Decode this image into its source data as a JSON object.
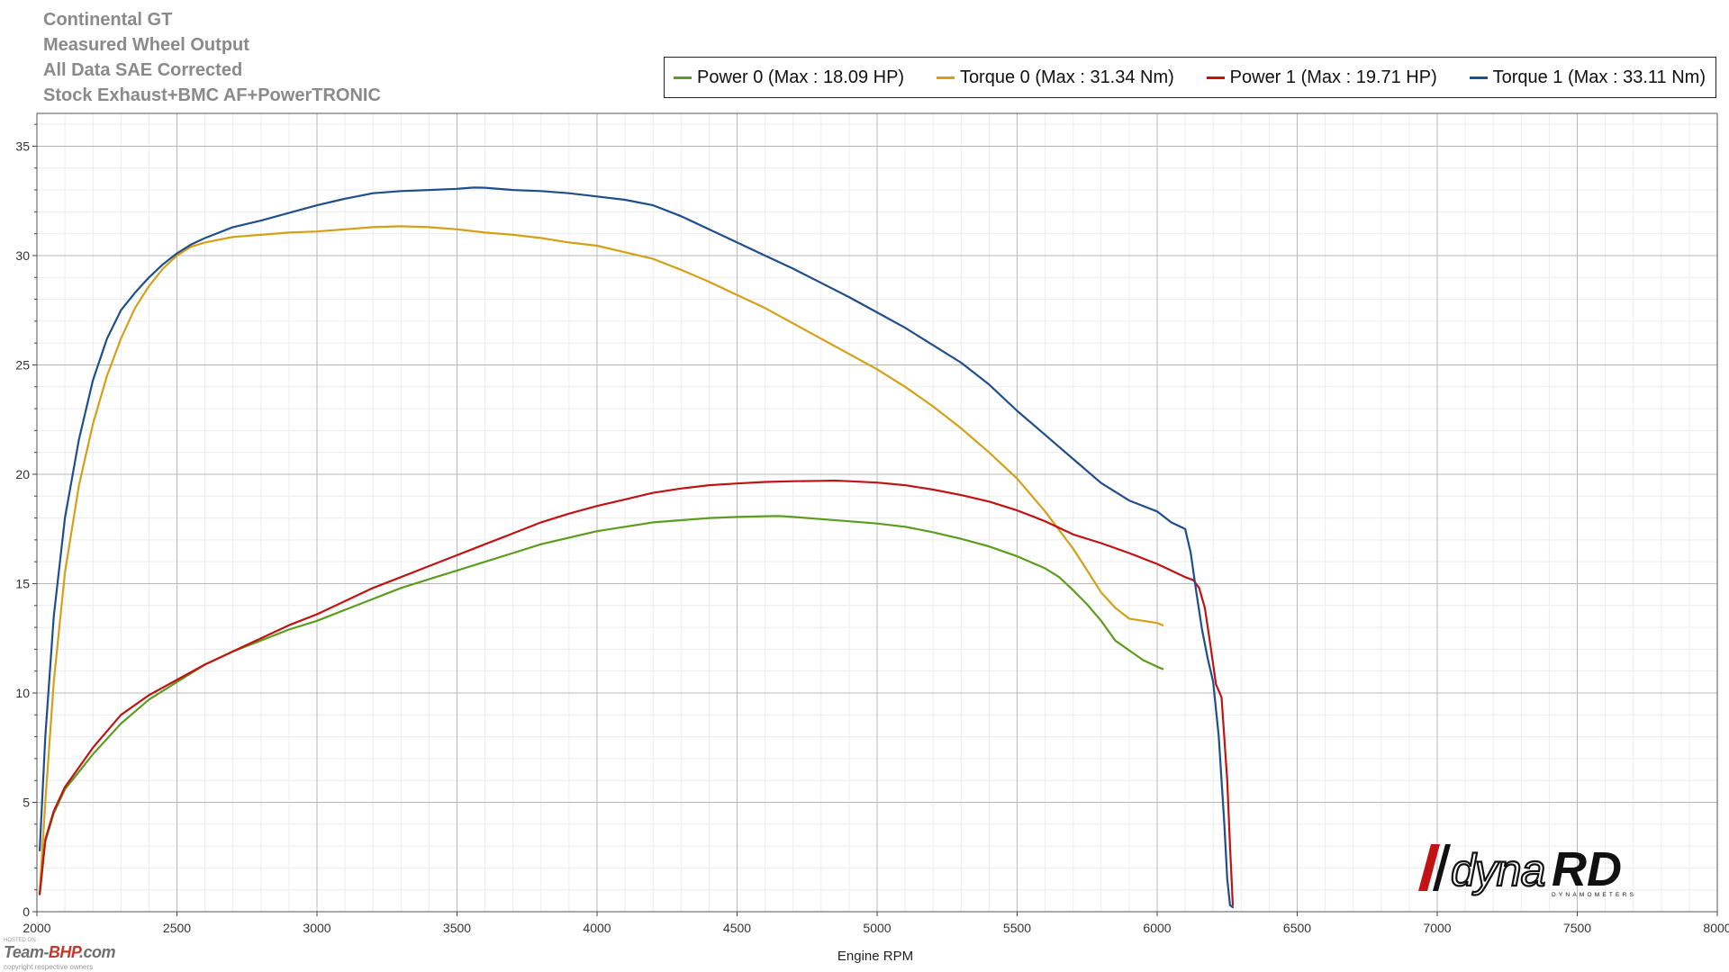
{
  "header": {
    "lines": [
      "Continental GT",
      "Measured Wheel Output",
      "All Data SAE Corrected",
      "Stock Exhaust+BMC AF+PowerTRONIC"
    ]
  },
  "logo": {
    "text": "dynaRD",
    "subtext": "DYNAMOMETERS"
  },
  "watermark": {
    "small": "HOSTED ON :",
    "main_left": "Team-",
    "main_accent": "BHP",
    "main_right": ".com",
    "copyright": "copyright respective owners"
  },
  "chart_data": {
    "type": "line",
    "xlabel": "Engine RPM",
    "ylabel": "",
    "xlim": [
      2000,
      8000
    ],
    "ylim": [
      0,
      36.5
    ],
    "xticks": [
      2000,
      2500,
      3000,
      3500,
      4000,
      4500,
      5000,
      5500,
      6000,
      6500,
      7000,
      7500,
      8000
    ],
    "yticks": [
      0,
      5,
      10,
      15,
      20,
      25,
      30,
      35
    ],
    "grid": true,
    "legend_position": "top-right",
    "series": [
      {
        "name": "Power 0",
        "legend_label": "Power 0 (Max : 18.09 HP)",
        "color": "#5c9c1e",
        "x": [
          2010,
          2030,
          2060,
          2100,
          2150,
          2200,
          2300,
          2400,
          2500,
          2600,
          2700,
          2800,
          2900,
          3000,
          3100,
          3200,
          3300,
          3400,
          3500,
          3600,
          3700,
          3800,
          3900,
          4000,
          4100,
          4200,
          4300,
          4400,
          4500,
          4600,
          4650,
          4700,
          4800,
          4900,
          5000,
          5100,
          5200,
          5300,
          5400,
          5500,
          5600,
          5650,
          5700,
          5750,
          5800,
          5850,
          5900,
          5950,
          6000,
          6020
        ],
        "y": [
          0.8,
          3.2,
          4.5,
          5.6,
          6.4,
          7.2,
          8.6,
          9.7,
          10.5,
          11.3,
          11.9,
          12.4,
          12.9,
          13.3,
          13.8,
          14.3,
          14.8,
          15.2,
          15.6,
          16.0,
          16.4,
          16.8,
          17.1,
          17.4,
          17.6,
          17.8,
          17.9,
          18.0,
          18.05,
          18.08,
          18.09,
          18.05,
          17.95,
          17.85,
          17.75,
          17.6,
          17.35,
          17.05,
          16.7,
          16.25,
          15.7,
          15.3,
          14.7,
          14.05,
          13.3,
          12.4,
          11.95,
          11.5,
          11.2,
          11.1
        ]
      },
      {
        "name": "Torque 0",
        "legend_label": "Torque 0 (Max : 31.34 Nm)",
        "color": "#d4a017",
        "x": [
          2010,
          2030,
          2060,
          2100,
          2150,
          2200,
          2250,
          2300,
          2350,
          2400,
          2450,
          2500,
          2550,
          2600,
          2700,
          2800,
          2900,
          3000,
          3100,
          3200,
          3300,
          3400,
          3500,
          3600,
          3700,
          3800,
          3900,
          4000,
          4100,
          4200,
          4300,
          4400,
          4500,
          4600,
          4700,
          4800,
          4900,
          5000,
          5100,
          5200,
          5300,
          5400,
          5500,
          5600,
          5700,
          5750,
          5800,
          5850,
          5900,
          5950,
          6000,
          6020
        ],
        "y": [
          0.9,
          5.0,
          10.5,
          15.5,
          19.5,
          22.3,
          24.5,
          26.2,
          27.6,
          28.6,
          29.4,
          30.0,
          30.4,
          30.6,
          30.85,
          30.95,
          31.05,
          31.1,
          31.2,
          31.3,
          31.34,
          31.3,
          31.2,
          31.05,
          30.95,
          30.8,
          30.6,
          30.45,
          30.15,
          29.85,
          29.35,
          28.8,
          28.2,
          27.6,
          26.9,
          26.2,
          25.5,
          24.8,
          24.0,
          23.1,
          22.1,
          21.0,
          19.8,
          18.3,
          16.6,
          15.6,
          14.6,
          13.9,
          13.4,
          13.3,
          13.2,
          13.1
        ]
      },
      {
        "name": "Power 1",
        "legend_label": "Power 1 (Max : 19.71 HP)",
        "color": "#c01313",
        "x": [
          2010,
          2030,
          2060,
          2100,
          2150,
          2200,
          2300,
          2400,
          2500,
          2600,
          2700,
          2800,
          2900,
          3000,
          3100,
          3200,
          3300,
          3400,
          3500,
          3600,
          3700,
          3800,
          3900,
          4000,
          4100,
          4200,
          4300,
          4400,
          4500,
          4600,
          4700,
          4800,
          4850,
          4900,
          5000,
          5100,
          5200,
          5300,
          5400,
          5500,
          5600,
          5700,
          5800,
          5900,
          6000,
          6050,
          6100,
          6130,
          6150,
          6170,
          6190,
          6210,
          6230,
          6250,
          6260,
          6270
        ],
        "y": [
          0.8,
          3.3,
          4.6,
          5.7,
          6.6,
          7.5,
          9.0,
          9.9,
          10.6,
          11.3,
          11.9,
          12.5,
          13.1,
          13.6,
          14.2,
          14.8,
          15.3,
          15.8,
          16.3,
          16.8,
          17.3,
          17.8,
          18.2,
          18.55,
          18.85,
          19.15,
          19.35,
          19.5,
          19.58,
          19.65,
          19.68,
          19.7,
          19.71,
          19.68,
          19.62,
          19.5,
          19.3,
          19.05,
          18.75,
          18.35,
          17.85,
          17.25,
          16.85,
          16.4,
          15.9,
          15.6,
          15.3,
          15.15,
          14.8,
          13.9,
          12.2,
          10.4,
          9.8,
          6.0,
          3.0,
          0.3
        ]
      },
      {
        "name": "Torque 1",
        "legend_label": "Torque 1 (Max : 33.11 Nm)",
        "color": "#1f4e8c",
        "x": [
          2010,
          2030,
          2060,
          2100,
          2150,
          2200,
          2250,
          2300,
          2350,
          2400,
          2450,
          2500,
          2550,
          2600,
          2700,
          2800,
          2900,
          3000,
          3100,
          3200,
          3300,
          3400,
          3500,
          3560,
          3600,
          3700,
          3800,
          3900,
          4000,
          4100,
          4200,
          4300,
          4400,
          4500,
          4600,
          4700,
          4800,
          4900,
          5000,
          5100,
          5200,
          5300,
          5400,
          5500,
          5600,
          5700,
          5800,
          5900,
          6000,
          6050,
          6100,
          6120,
          6140,
          6160,
          6180,
          6200,
          6220,
          6240,
          6250,
          6260,
          6270
        ],
        "y": [
          2.8,
          8.0,
          13.5,
          18.0,
          21.6,
          24.3,
          26.2,
          27.5,
          28.3,
          29.0,
          29.6,
          30.1,
          30.5,
          30.8,
          31.3,
          31.6,
          31.95,
          32.3,
          32.6,
          32.85,
          32.95,
          33.0,
          33.05,
          33.11,
          33.1,
          33.0,
          32.95,
          32.85,
          32.7,
          32.55,
          32.3,
          31.8,
          31.2,
          30.6,
          30.0,
          29.4,
          28.75,
          28.1,
          27.4,
          26.7,
          25.9,
          25.1,
          24.1,
          22.9,
          21.8,
          20.7,
          19.6,
          18.8,
          18.3,
          17.8,
          17.5,
          16.4,
          14.6,
          12.9,
          11.6,
          10.5,
          8.0,
          4.0,
          1.5,
          0.3,
          0.2
        ]
      }
    ]
  }
}
